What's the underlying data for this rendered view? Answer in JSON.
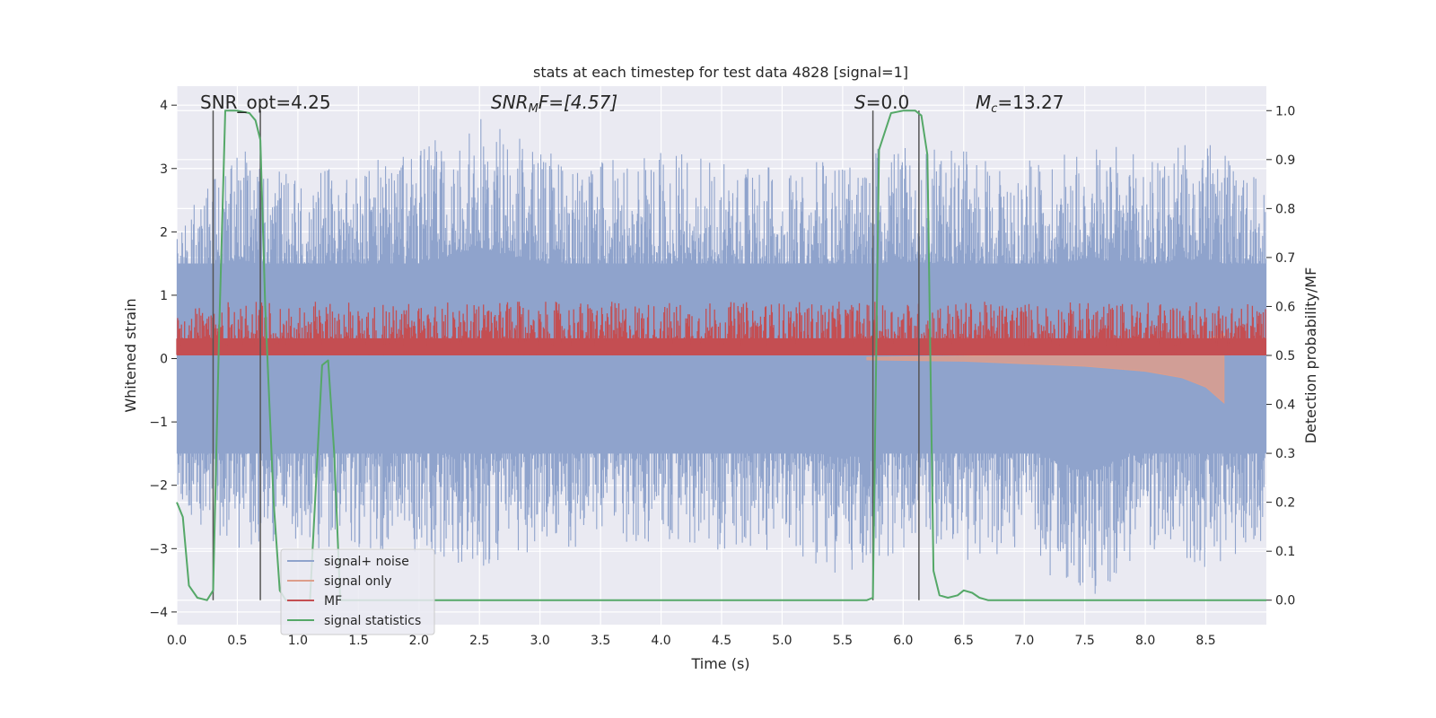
{
  "chart_data": {
    "type": "line",
    "title": "stats at each timestep for test data 4828 [signal=1]",
    "xlabel": "Time (s)",
    "ylabel": "Whitened strain",
    "y2label": "Detection probability/MF",
    "xlim": [
      0,
      9
    ],
    "ylim": [
      -4.2,
      4.3
    ],
    "y2lim": [
      -0.05,
      1.05
    ],
    "xticks": [
      "0.0",
      "0.5",
      "1.0",
      "1.5",
      "2.0",
      "2.5",
      "3.0",
      "3.5",
      "4.0",
      "4.5",
      "5.0",
      "5.5",
      "6.0",
      "6.5",
      "7.0",
      "7.5",
      "8.0",
      "8.5"
    ],
    "yticks": [
      "−4",
      "−3",
      "−2",
      "−1",
      "0",
      "1",
      "2",
      "3",
      "4"
    ],
    "y2ticks": [
      "0.0",
      "0.1",
      "0.2",
      "0.3",
      "0.4",
      "0.5",
      "0.6",
      "0.7",
      "0.8",
      "0.9",
      "1.0"
    ],
    "grid": true,
    "legend_position": "lower-left",
    "annotations": {
      "snr_opt": "SNR_opt=4.25",
      "snr_mf_main": "SNR",
      "snr_mf_sub": "M",
      "snr_mf_rest": "F=[4.57]",
      "s_main": "S",
      "s_rest": "=0.0",
      "mc_main": "M",
      "mc_sub": "c",
      "mc_rest": "=13.27"
    },
    "detection_markers_x": [
      0.3,
      0.69,
      5.75,
      6.13
    ],
    "series": [
      {
        "name": "signal+ noise",
        "color": "#8fa3cc",
        "axis": "left",
        "envelope": {
          "x": [
            0,
            0.5,
            1.0,
            1.5,
            2.0,
            2.5,
            3.0,
            3.5,
            4.0,
            4.5,
            5.0,
            5.5,
            6.0,
            6.5,
            7.0,
            7.5,
            8.0,
            8.5,
            9.0
          ],
          "upper": [
            2.0,
            3.5,
            3.0,
            3.1,
            3.3,
            3.9,
            3.3,
            3.1,
            3.3,
            3.1,
            3.0,
            3.2,
            3.4,
            3.3,
            3.1,
            3.5,
            3.2,
            3.5,
            2.7
          ],
          "lower": [
            -2.6,
            -3.0,
            -3.0,
            -3.0,
            -3.1,
            -3.3,
            -3.1,
            -2.9,
            -2.9,
            -3.1,
            -3.0,
            -3.5,
            -3.0,
            -3.2,
            -3.0,
            -4.0,
            -3.0,
            -3.3,
            -2.9
          ]
        }
      },
      {
        "name": "signal only",
        "color": "#dd9e8c",
        "axis": "left",
        "envelope": {
          "x": [
            5.7,
            6.5,
            7.0,
            7.5,
            8.0,
            8.3,
            8.5,
            8.65
          ],
          "upper": [
            0.02,
            0.04,
            0.06,
            0.1,
            0.15,
            0.2,
            0.3,
            0.4
          ],
          "lower": [
            -0.02,
            -0.04,
            -0.08,
            -0.12,
            -0.2,
            -0.3,
            -0.45,
            -0.7
          ]
        }
      },
      {
        "name": "MF",
        "color": "#c44e52",
        "axis": "right",
        "band": [
          0.5,
          0.61
        ]
      },
      {
        "name": "signal statistics",
        "color": "#55a868",
        "axis": "right",
        "x": [
          0.0,
          0.05,
          0.1,
          0.17,
          0.25,
          0.3,
          0.35,
          0.4,
          0.5,
          0.6,
          0.65,
          0.69,
          0.73,
          0.8,
          0.85,
          0.9,
          1.0,
          1.1,
          1.2,
          1.25,
          1.3,
          1.35,
          1.4,
          1.5,
          2.0,
          3.0,
          4.0,
          5.0,
          5.7,
          5.75,
          5.8,
          5.9,
          6.0,
          6.1,
          6.15,
          6.2,
          6.25,
          6.3,
          6.37,
          6.45,
          6.5,
          6.57,
          6.63,
          6.7,
          7.0,
          7.5,
          8.0,
          8.5,
          9.0
        ],
        "y": [
          0.2,
          0.17,
          0.03,
          0.005,
          0.0,
          0.02,
          0.55,
          1.0,
          1.0,
          0.995,
          0.98,
          0.94,
          0.6,
          0.2,
          0.02,
          0.0,
          0.0,
          0.0,
          0.48,
          0.49,
          0.3,
          0.0,
          0.0,
          0.0,
          0.0,
          0.0,
          0.0,
          0.0,
          0.0,
          0.005,
          0.92,
          0.995,
          1.0,
          1.0,
          0.99,
          0.91,
          0.06,
          0.01,
          0.005,
          0.01,
          0.02,
          0.015,
          0.005,
          0.0,
          0.0,
          0.0,
          0.0,
          0.0,
          0.0
        ]
      }
    ]
  },
  "legend": {
    "items": [
      "signal+ noise",
      "signal only",
      "MF",
      "signal statistics"
    ]
  }
}
